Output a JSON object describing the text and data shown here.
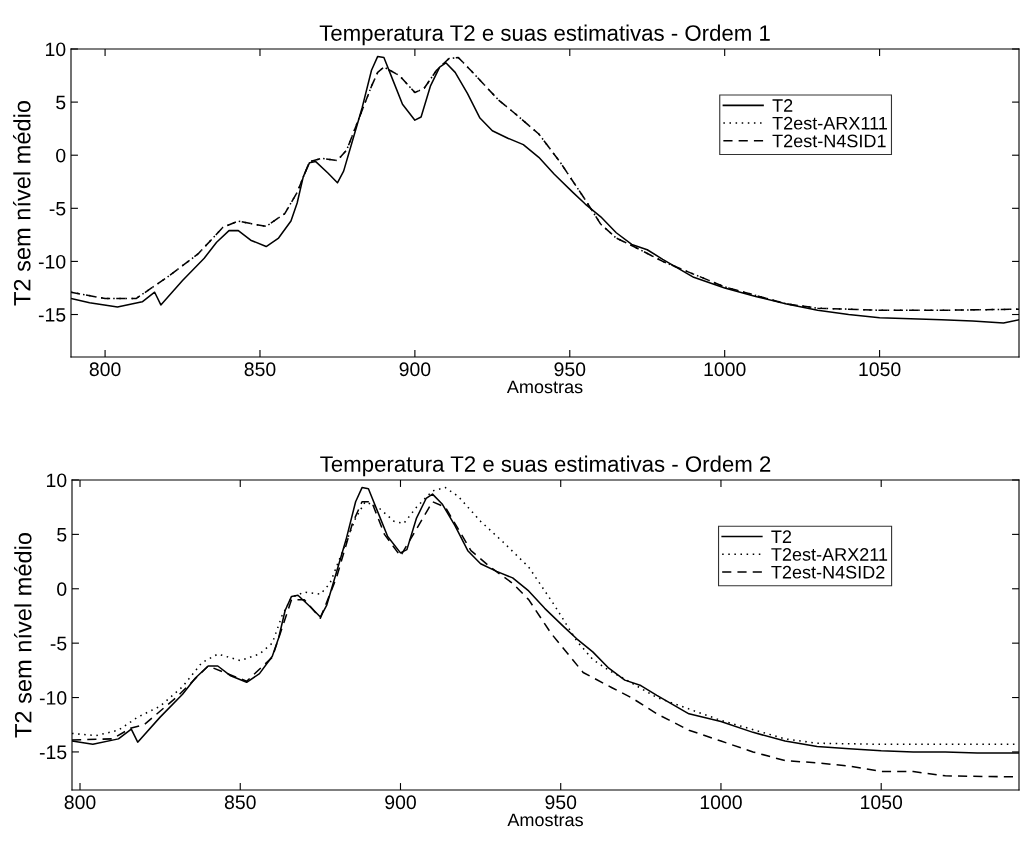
{
  "chart_data": [
    {
      "type": "line",
      "title": "Temperatura T2 e suas estimativas - Ordem 1",
      "xlabel": "Amostras",
      "ylabel": "T2 sem nível médio",
      "xlim": [
        789,
        1095
      ],
      "ylim": [
        -19,
        10
      ],
      "xticks": [
        800,
        850,
        900,
        950,
        1000,
        1050
      ],
      "yticks": [
        -15,
        -10,
        -5,
        0,
        5,
        10
      ],
      "legend": "top right",
      "grid": false,
      "series": [
        {
          "name": "T2",
          "color": "#000000",
          "line_style": "solid",
          "x": [
            789,
            795,
            804,
            812,
            816,
            818,
            825,
            832,
            836,
            840,
            843,
            847,
            852,
            856,
            860,
            862,
            864,
            866,
            868,
            872,
            875,
            877,
            880,
            883,
            886,
            888,
            890,
            893,
            896,
            900,
            902,
            905,
            908,
            910,
            913,
            917,
            921,
            925,
            930,
            935,
            940,
            945,
            951,
            955,
            960,
            965,
            970,
            975,
            980,
            990,
            1000,
            1010,
            1020,
            1030,
            1040,
            1050,
            1060,
            1070,
            1080,
            1090,
            1095
          ],
          "values": [
            -13.5,
            -13.9,
            -14.3,
            -13.8,
            -12.9,
            -14.1,
            -11.8,
            -9.7,
            -8.2,
            -7.1,
            -7.1,
            -8.0,
            -8.6,
            -7.8,
            -6.2,
            -4.5,
            -2.0,
            -0.7,
            -0.6,
            -1.7,
            -2.6,
            -1.5,
            1.5,
            4.5,
            8.0,
            9.3,
            9.2,
            7.0,
            4.8,
            3.3,
            3.6,
            6.5,
            8.3,
            8.7,
            7.8,
            5.8,
            3.5,
            2.3,
            1.6,
            1.0,
            -0.2,
            -1.8,
            -3.5,
            -4.6,
            -5.8,
            -7.3,
            -8.4,
            -8.9,
            -9.8,
            -11.5,
            -12.5,
            -13.3,
            -14.0,
            -14.6,
            -15.0,
            -15.3,
            -15.4,
            -15.5,
            -15.6,
            -15.8,
            -15.5
          ]
        },
        {
          "name": "T2est-ARX111",
          "color": "#000000",
          "line_style": "dotted",
          "x": [
            789,
            800,
            810,
            815,
            820,
            830,
            838,
            843,
            848,
            852,
            858,
            862,
            866,
            870,
            875,
            878,
            882,
            886,
            888,
            890,
            895,
            900,
            903,
            907,
            911,
            914,
            918,
            927,
            932,
            940,
            947,
            955,
            960,
            965,
            970,
            980,
            1000,
            1020,
            1030,
            1050,
            1070,
            1095
          ],
          "values": [
            -12.9,
            -13.5,
            -13.5,
            -12.5,
            -11.5,
            -9.3,
            -6.8,
            -6.2,
            -6.5,
            -6.7,
            -5.5,
            -3.5,
            -0.6,
            -0.3,
            -0.5,
            0.5,
            3.5,
            6.5,
            7.8,
            8.3,
            7.5,
            5.9,
            6.3,
            8.0,
            9.1,
            9.2,
            8.0,
            5.2,
            4.0,
            2.0,
            -0.7,
            -4.2,
            -6.5,
            -7.8,
            -8.5,
            -10.0,
            -12.4,
            -14.0,
            -14.4,
            -14.6,
            -14.6,
            -14.5
          ]
        },
        {
          "name": "T2est-N4SID1",
          "color": "#000000",
          "line_style": "dashed",
          "x": [
            789,
            800,
            810,
            815,
            820,
            830,
            838,
            843,
            848,
            852,
            858,
            862,
            866,
            870,
            875,
            878,
            882,
            886,
            888,
            890,
            895,
            900,
            903,
            907,
            911,
            914,
            918,
            927,
            932,
            940,
            947,
            955,
            960,
            965,
            970,
            980,
            1000,
            1020,
            1030,
            1050,
            1070,
            1095
          ],
          "values": [
            -12.9,
            -13.5,
            -13.5,
            -12.5,
            -11.5,
            -9.3,
            -6.8,
            -6.2,
            -6.5,
            -6.7,
            -5.5,
            -3.5,
            -0.6,
            -0.3,
            -0.5,
            0.5,
            3.5,
            6.5,
            7.8,
            8.3,
            7.5,
            5.9,
            6.3,
            8.0,
            9.1,
            9.2,
            8.0,
            5.2,
            4.0,
            2.0,
            -0.7,
            -4.2,
            -6.5,
            -7.8,
            -8.5,
            -10.0,
            -12.4,
            -14.0,
            -14.4,
            -14.6,
            -14.6,
            -14.5
          ]
        }
      ]
    },
    {
      "type": "line",
      "title": "Temperatura T2 e suas estimativas - Ordem 2",
      "xlabel": "Amostras",
      "ylabel": "T2 sem nível médio",
      "xlim": [
        797.5,
        1093
      ],
      "ylim": [
        -18.5,
        10
      ],
      "xticks": [
        800,
        850,
        900,
        950,
        1000,
        1050
      ],
      "yticks": [
        -15,
        -10,
        -5,
        0,
        5,
        10
      ],
      "legend": "top right",
      "grid": false,
      "series": [
        {
          "name": "T2",
          "color": "#000000",
          "line_style": "solid",
          "x": [
            797.5,
            804,
            812,
            816,
            818,
            825,
            832,
            836,
            840,
            843,
            847,
            852,
            856,
            860,
            862,
            864,
            866,
            868,
            872,
            875,
            877,
            880,
            883,
            886,
            888,
            890,
            893,
            896,
            900,
            902,
            905,
            908,
            910,
            913,
            917,
            921,
            925,
            930,
            935,
            940,
            945,
            951,
            955,
            960,
            965,
            970,
            975,
            980,
            990,
            1000,
            1010,
            1020,
            1030,
            1040,
            1050,
            1060,
            1070,
            1080,
            1093
          ],
          "values": [
            -14.0,
            -14.3,
            -13.8,
            -12.9,
            -14.1,
            -11.8,
            -9.7,
            -8.2,
            -7.1,
            -7.1,
            -8.0,
            -8.6,
            -7.8,
            -6.2,
            -4.5,
            -2.0,
            -0.7,
            -0.6,
            -1.7,
            -2.6,
            -1.5,
            1.5,
            4.5,
            8.0,
            9.3,
            9.2,
            7.0,
            4.8,
            3.3,
            3.6,
            6.5,
            8.3,
            8.7,
            7.8,
            5.8,
            3.5,
            2.3,
            1.6,
            1.0,
            -0.2,
            -1.8,
            -3.5,
            -4.6,
            -5.8,
            -7.3,
            -8.4,
            -8.9,
            -9.8,
            -11.5,
            -12.2,
            -13.2,
            -14.0,
            -14.5,
            -14.7,
            -14.9,
            -15.0,
            -15.0,
            -15.1,
            -15.1
          ]
        },
        {
          "name": "T2est-ARX211",
          "color": "#000000",
          "line_style": "dotted",
          "x": [
            797.5,
            805,
            812,
            818,
            825,
            832,
            838,
            843,
            850,
            856,
            860,
            863,
            866,
            870,
            875,
            878,
            882,
            886,
            889,
            893,
            898,
            901,
            905,
            910,
            914,
            918,
            925,
            932,
            940,
            948,
            955,
            960,
            965,
            970,
            980,
            1000,
            1020,
            1030,
            1050,
            1070,
            1093
          ],
          "values": [
            -13.3,
            -13.5,
            -13.0,
            -11.8,
            -10.8,
            -9.0,
            -6.8,
            -6.0,
            -6.6,
            -6.0,
            -5.0,
            -2.5,
            -0.8,
            -0.3,
            -0.5,
            0.5,
            3.5,
            6.5,
            8.0,
            7.5,
            6.2,
            6.0,
            7.5,
            9.0,
            9.3,
            8.5,
            6.2,
            4.3,
            2.0,
            -1.5,
            -4.8,
            -6.5,
            -7.5,
            -8.3,
            -10.0,
            -12.1,
            -13.8,
            -14.2,
            -14.3,
            -14.3,
            -14.3
          ]
        },
        {
          "name": "T2est-N4SID2",
          "color": "#000000",
          "line_style": "dashed",
          "x": [
            797.5,
            810,
            816,
            820,
            830,
            840,
            852,
            860,
            866,
            870,
            875,
            880,
            885,
            888,
            891,
            895,
            900,
            905,
            910,
            914,
            918,
            922,
            928,
            935,
            940,
            947,
            957,
            966,
            972,
            980,
            990,
            1000,
            1010,
            1020,
            1030,
            1040,
            1050,
            1060,
            1070,
            1093
          ],
          "values": [
            -13.9,
            -13.8,
            -12.8,
            -12.5,
            -10.0,
            -7.1,
            -8.5,
            -6.3,
            -1.0,
            -1.0,
            -2.7,
            1.0,
            6.0,
            8.0,
            8.0,
            5.0,
            3.0,
            5.5,
            8.0,
            7.5,
            5.5,
            3.5,
            2.0,
            0.5,
            -1.0,
            -4.1,
            -7.7,
            -9.1,
            -10.0,
            -11.5,
            -13.0,
            -14.0,
            -15.0,
            -15.8,
            -16.0,
            -16.3,
            -16.8,
            -16.8,
            -17.2,
            -17.3
          ]
        }
      ]
    }
  ]
}
